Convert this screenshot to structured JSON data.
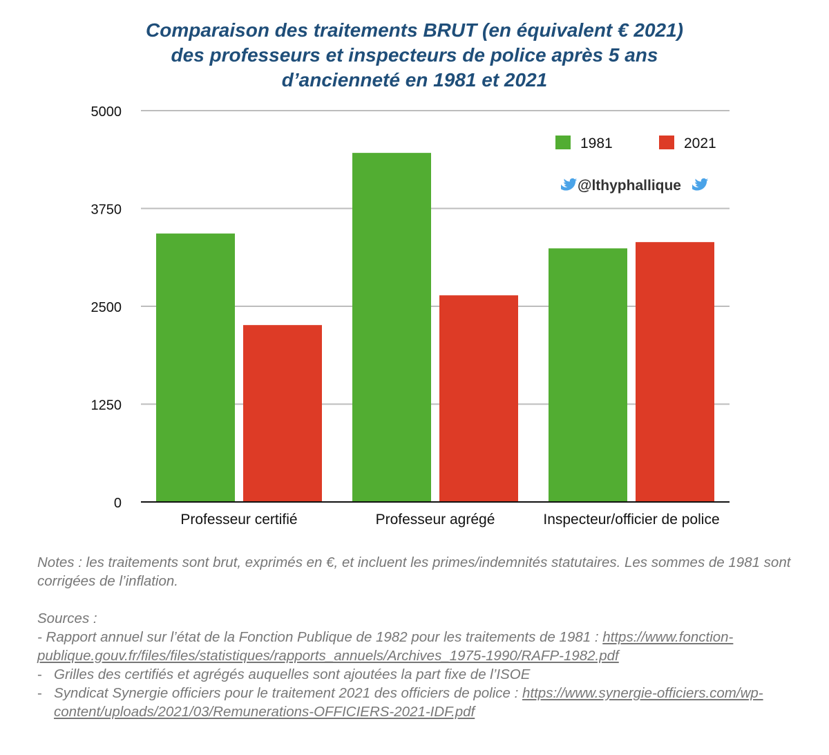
{
  "chart_data": {
    "type": "bar",
    "title_lines": [
      "Comparaison des traitements BRUT (en équivalent € 2021)",
      "des professeurs et inspecteurs de police après 5 ans",
      "d’ancienneté en 1981 et 2021"
    ],
    "categories": [
      "Professeur certifié",
      "Professeur agrégé",
      "Inspecteur/officier de police"
    ],
    "series": [
      {
        "name": "1981",
        "color": "#52ad32",
        "values": [
          3430,
          4460,
          3240
        ]
      },
      {
        "name": "2021",
        "color": "#dd3b26",
        "values": [
          2260,
          2640,
          3320
        ]
      }
    ],
    "ylim": [
      0,
      5000
    ],
    "yticks": [
      0,
      1250,
      2500,
      3750,
      5000
    ],
    "grid": true,
    "legend_position": "top-right",
    "watermark": "@lthyphallique"
  },
  "notes": {
    "text": "Notes : les traitements sont brut, exprimés en €, et incluent les primes/indemnités statutaires. Les sommes de 1981 sont corrigées de l’inflation.",
    "sources_heading": "Sources :",
    "sources": [
      {
        "dash": "-",
        "text": "Rapport annuel sur l’état de la Fonction Publique de 1982 pour les traitements de 1981 : ",
        "link": "https://www.fonction-publique.gouv.fr/files/files/statistiques/rapports_annuels/Archives_1975-1990/RAFP-1982.pdf"
      },
      {
        "dash": "-",
        "text": "Grilles des certifiés et agrégés auquelles sont ajoutées la part fixe de l’ISOE",
        "link": ""
      },
      {
        "dash": "-",
        "text": "Syndicat Synergie officiers pour le traitement 2021 des officiers de police : ",
        "link": "https://www.synergie-officiers.com/wp-content/uploads/2021/03/Remunerations-OFFICIERS-2021-IDF.pdf"
      }
    ]
  }
}
